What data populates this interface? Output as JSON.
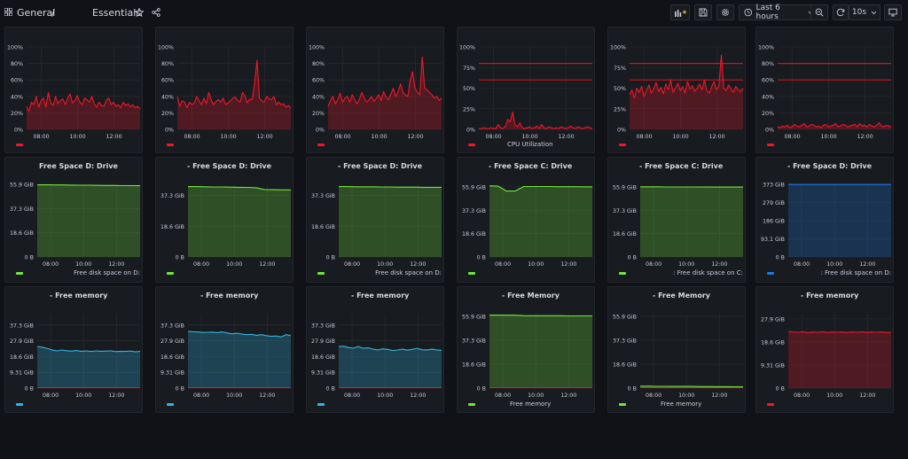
{
  "header": {
    "breadcrumb_root": "General",
    "breadcrumb_sep": "/",
    "title": "Essentials",
    "time_range": "Last 6 hours",
    "refresh_interval": "10s"
  },
  "colors": {
    "red": "#f2162b",
    "green": "#73e53b",
    "blue": "#1f78e0",
    "cyan": "#33b5e5",
    "threshold": "#d1131f"
  },
  "panels": [
    {
      "title": "",
      "unit": "percent",
      "color": "red",
      "legend": "",
      "bottom_label": "",
      "y_ticks": [
        "100%",
        "80%",
        "60%",
        "40%",
        "20%",
        "0%"
      ],
      "x_ticks": [
        "08:00",
        "10:00",
        "12:00"
      ],
      "series": [
        28,
        22,
        33,
        30,
        40,
        27,
        35,
        38,
        27,
        45,
        32,
        29,
        40,
        31,
        35,
        37,
        30,
        38,
        43,
        32,
        35,
        41,
        33,
        30,
        38,
        36,
        33,
        40,
        31,
        27,
        33,
        29,
        28,
        35,
        38,
        30,
        33,
        28,
        30,
        26,
        33,
        29,
        31,
        27,
        30,
        26,
        28,
        25
      ]
    },
    {
      "title": "",
      "unit": "percent",
      "color": "red",
      "legend": "",
      "bottom_label": "",
      "y_ticks": [
        "100%",
        "80%",
        "60%",
        "40%",
        "20%",
        "0%"
      ],
      "x_ticks": [
        "08:00",
        "10:00",
        "12:00"
      ],
      "series": [
        40,
        28,
        35,
        33,
        26,
        33,
        30,
        32,
        40,
        35,
        30,
        38,
        31,
        45,
        36,
        30,
        34,
        36,
        33,
        38,
        30,
        32,
        35,
        38,
        39,
        35,
        33,
        45,
        40,
        32,
        37,
        36,
        56,
        84,
        38,
        35,
        33,
        40,
        37,
        36,
        40,
        30,
        33,
        30,
        31,
        27,
        29,
        26
      ]
    },
    {
      "title": "",
      "unit": "percent",
      "color": "red",
      "legend": "",
      "bottom_label": "",
      "y_ticks": [
        "100%",
        "80%",
        "60%",
        "40%",
        "20%",
        "0%"
      ],
      "x_ticks": [
        "08:00",
        "10:00",
        "12:00"
      ],
      "series": [
        28,
        35,
        40,
        31,
        36,
        44,
        33,
        38,
        40,
        33,
        42,
        36,
        31,
        37,
        45,
        38,
        33,
        36,
        40,
        34,
        38,
        42,
        35,
        46,
        39,
        36,
        43,
        50,
        40,
        46,
        55,
        45,
        42,
        40,
        60,
        70,
        50,
        45,
        42,
        88,
        50,
        48,
        45,
        42,
        38,
        40,
        35,
        38
      ]
    },
    {
      "title": "",
      "unit": "percent",
      "color": "red",
      "legend": "",
      "bottom_label": "CPU Utilization",
      "y_ticks": [
        "100%",
        "75%",
        "50%",
        "25%",
        "0%"
      ],
      "x_ticks": [
        "08:00",
        "10:00",
        "12:00"
      ],
      "thresholds": [
        80,
        60
      ],
      "series": [
        1,
        1,
        2,
        1,
        1,
        2,
        1,
        1,
        6,
        2,
        1,
        4,
        12,
        9,
        21,
        5,
        3,
        8,
        2,
        1,
        2,
        3,
        1,
        2,
        4,
        1,
        6,
        2,
        1,
        3,
        2,
        1,
        2,
        1,
        3,
        2,
        1,
        2,
        4,
        2,
        1,
        3,
        2,
        1,
        2,
        3,
        2,
        1
      ]
    },
    {
      "title": "",
      "unit": "percent",
      "color": "red",
      "legend": "",
      "bottom_label": "",
      "y_ticks": [
        "100%",
        "75%",
        "50%",
        "25%",
        "0%"
      ],
      "x_ticks": [
        "08:00",
        "10:00",
        "12:00"
      ],
      "thresholds": [
        80,
        60
      ],
      "series": [
        42,
        48,
        38,
        50,
        45,
        52,
        40,
        47,
        54,
        44,
        49,
        57,
        46,
        51,
        43,
        55,
        48,
        60,
        45,
        50,
        56,
        47,
        52,
        44,
        58,
        49,
        53,
        46,
        50,
        55,
        48,
        60,
        47,
        44,
        52,
        58,
        48,
        53,
        90,
        50,
        47,
        54,
        49,
        45,
        52,
        48,
        46,
        50
      ]
    },
    {
      "title": "",
      "unit": "percent",
      "color": "red",
      "legend": "",
      "bottom_label": "",
      "y_ticks": [
        "100%",
        "80%",
        "60%",
        "40%",
        "20%",
        "0%"
      ],
      "x_ticks": [
        "08:00",
        "10:00",
        "12:00"
      ],
      "thresholds": [
        80,
        60
      ],
      "series": [
        3,
        2,
        4,
        3,
        5,
        2,
        3,
        6,
        4,
        3,
        5,
        7,
        3,
        4,
        6,
        5,
        3,
        4,
        2,
        5,
        6,
        3,
        4,
        5,
        7,
        3,
        4,
        6,
        5,
        3,
        4,
        5,
        6,
        3,
        7,
        4,
        5,
        3,
        6,
        4,
        3,
        5,
        8,
        4,
        3,
        5,
        4,
        3
      ]
    },
    {
      "title": "Free Space D: Drive",
      "unit": "bytes",
      "color": "green",
      "legend": "Free disk space on D:",
      "bottom_label": "",
      "y_ticks": [
        "55.9 GiB",
        "37.3 GiB",
        "18.6 GiB",
        "0 B"
      ],
      "x_ticks": [
        "08:00",
        "10:00",
        "12:00"
      ],
      "y_max": 55.9,
      "series": [
        55.5,
        55.5,
        55.4,
        55.4,
        55.3,
        55.2,
        55.2,
        55.1,
        55.0,
        55.0,
        54.9,
        54.9,
        54.8
      ]
    },
    {
      "title": "- Free Space D: Drive",
      "unit": "bytes",
      "color": "green",
      "legend": "",
      "bottom_label": "",
      "y_ticks": [
        "37.3 GiB",
        "18.6 GiB",
        "0 B"
      ],
      "x_ticks": [
        "08:00",
        "10:00",
        "12:00"
      ],
      "y_max": 44.0,
      "series": [
        42.6,
        42.6,
        42.5,
        42.4,
        42.4,
        42.3,
        42.2,
        42.1,
        41.9,
        40.8,
        40.7,
        40.6,
        40.6
      ]
    },
    {
      "title": "- Free Space D: Drive",
      "unit": "bytes",
      "color": "green",
      "legend": "Free disk space on D:",
      "bottom_label": "",
      "y_ticks": [
        "37.3 GiB",
        "18.6 GiB",
        "0 B"
      ],
      "x_ticks": [
        "08:00",
        "10:00",
        "12:00"
      ],
      "y_max": 44.0,
      "series": [
        42.6,
        42.6,
        42.5,
        42.5,
        42.5,
        42.4,
        42.4,
        42.3,
        42.3,
        42.3,
        42.2,
        42.2,
        42.2
      ]
    },
    {
      "title": "- Free Space C: Drive",
      "unit": "bytes",
      "color": "green",
      "legend": "",
      "bottom_label": "",
      "y_ticks": [
        "55.9 GiB",
        "37.3 GiB",
        "18.6 GiB",
        "0 B"
      ],
      "x_ticks": [
        "08:00",
        "10:00",
        "12:00"
      ],
      "y_max": 58.0,
      "series": [
        56.8,
        56.5,
        52.6,
        52.6,
        56.2,
        56.2,
        56.2,
        56.2,
        56.1,
        56.1,
        56.1,
        56.0,
        56.0
      ]
    },
    {
      "title": "- Free Space C: Drive",
      "unit": "bytes",
      "color": "green",
      "legend": ": Free disk space on C:",
      "bottom_label": "",
      "y_ticks": [
        "55.9 GiB",
        "37.3 GiB",
        "18.6 GiB",
        "0 B"
      ],
      "x_ticks": [
        "08:00",
        "10:00",
        "12:00"
      ],
      "y_max": 58.0,
      "series": [
        56.0,
        56.0,
        56.0,
        55.9,
        55.9,
        55.9,
        55.9,
        55.9,
        55.8,
        55.8,
        55.8,
        55.8,
        55.8
      ]
    },
    {
      "title": "- Free Space D: Drive",
      "unit": "bytes",
      "color": "blue",
      "legend": ": Free disk space on D:",
      "bottom_label": "",
      "y_ticks": [
        "373 GiB",
        "279 GiB",
        "186 GiB",
        "93.1 GiB",
        "0 B"
      ],
      "x_ticks": [
        "08:00",
        "10:00",
        "12:00"
      ],
      "y_max": 373,
      "series": [
        372,
        372,
        372,
        372,
        372,
        372,
        372,
        372,
        372,
        372,
        372,
        372,
        372
      ]
    },
    {
      "title": "- Free memory",
      "unit": "bytes",
      "color": "cyan",
      "legend": "",
      "bottom_label": "",
      "y_ticks": [
        "37.3 GiB",
        "27.9 GiB",
        "18.6 GiB",
        "9.31 GiB",
        "0 B"
      ],
      "x_ticks": [
        "08:00",
        "10:00",
        "12:00"
      ],
      "y_max": 44.0,
      "series": [
        24.6,
        24.2,
        23.5,
        22.6,
        22.0,
        22.5,
        22.1,
        21.9,
        22.2,
        21.8,
        22.0,
        21.7,
        22.0,
        21.8,
        21.9,
        22.0,
        21.6,
        21.8,
        21.7,
        21.9,
        21.5,
        21.7
      ]
    },
    {
      "title": "- Free memory",
      "unit": "bytes",
      "color": "cyan",
      "legend": "",
      "bottom_label": "",
      "y_ticks": [
        "37.3 GiB",
        "27.9 GiB",
        "18.6 GiB",
        "9.31 GiB",
        "0 B"
      ],
      "x_ticks": [
        "08:00",
        "10:00",
        "12:00"
      ],
      "y_max": 44.0,
      "series": [
        33.5,
        33.3,
        33.2,
        32.9,
        33.0,
        33.1,
        32.8,
        33.2,
        32.6,
        32.1,
        32.4,
        31.9,
        31.6,
        31.8,
        31.2,
        31.6,
        31.0,
        30.6,
        30.8,
        30.2,
        31.6,
        31.0
      ]
    },
    {
      "title": "- Free memory",
      "unit": "bytes",
      "color": "cyan",
      "legend": "",
      "bottom_label": "",
      "y_ticks": [
        "37.3 GiB",
        "27.9 GiB",
        "18.6 GiB",
        "9.31 GiB",
        "0 B"
      ],
      "x_ticks": [
        "08:00",
        "10:00",
        "12:00"
      ],
      "y_max": 44.0,
      "series": [
        24.5,
        24.8,
        24.0,
        23.6,
        24.6,
        23.5,
        23.9,
        23.0,
        22.6,
        23.2,
        22.9,
        22.2,
        22.5,
        23.0,
        22.4,
        22.9,
        23.5,
        22.7,
        22.6,
        23.0,
        22.6,
        22.3
      ]
    },
    {
      "title": "- Free Memory",
      "unit": "bytes",
      "color": "green",
      "legend": "",
      "bottom_label": "Free memory",
      "y_ticks": [
        "55.9 GiB",
        "37.3 GiB",
        "18.6 GiB",
        "0 B"
      ],
      "x_ticks": [
        "08:00",
        "10:00",
        "12:00"
      ],
      "y_max": 58.0,
      "series": [
        56.9,
        56.9,
        56.8,
        56.8,
        56.5,
        56.4,
        56.4,
        56.4,
        56.4,
        56.3,
        56.3,
        56.3,
        56.3
      ]
    },
    {
      "title": "- Free Memory",
      "unit": "bytes",
      "color": "green",
      "legend": "",
      "bottom_label": "Free memory",
      "y_ticks": [
        "55.9 GiB",
        "37.3 GiB",
        "18.6 GiB",
        "0 B"
      ],
      "x_ticks": [
        "08:00",
        "10:00",
        "12:00"
      ],
      "y_max": 58.0,
      "series": [
        1.5,
        1.5,
        1.4,
        1.4,
        1.3,
        1.3,
        1.3,
        1.2,
        1.2,
        1.1,
        1.1,
        1.0,
        1.0
      ]
    },
    {
      "title": "- Free memory",
      "unit": "bytes",
      "color": "red",
      "legend": "",
      "bottom_label": "",
      "y_ticks": [
        "27.9 GiB",
        "18.6 GiB",
        "9.31 GiB",
        "0 B"
      ],
      "x_ticks": [
        "08:00",
        "10:00",
        "12:00"
      ],
      "y_max": 30.0,
      "series": [
        22.8,
        22.6,
        22.5,
        22.7,
        22.4,
        22.6,
        22.5,
        22.7,
        22.4,
        22.6,
        22.5,
        22.6,
        22.4,
        22.6,
        22.5,
        22.7,
        22.4,
        22.6,
        22.5,
        22.6,
        22.4,
        22.5
      ]
    }
  ]
}
